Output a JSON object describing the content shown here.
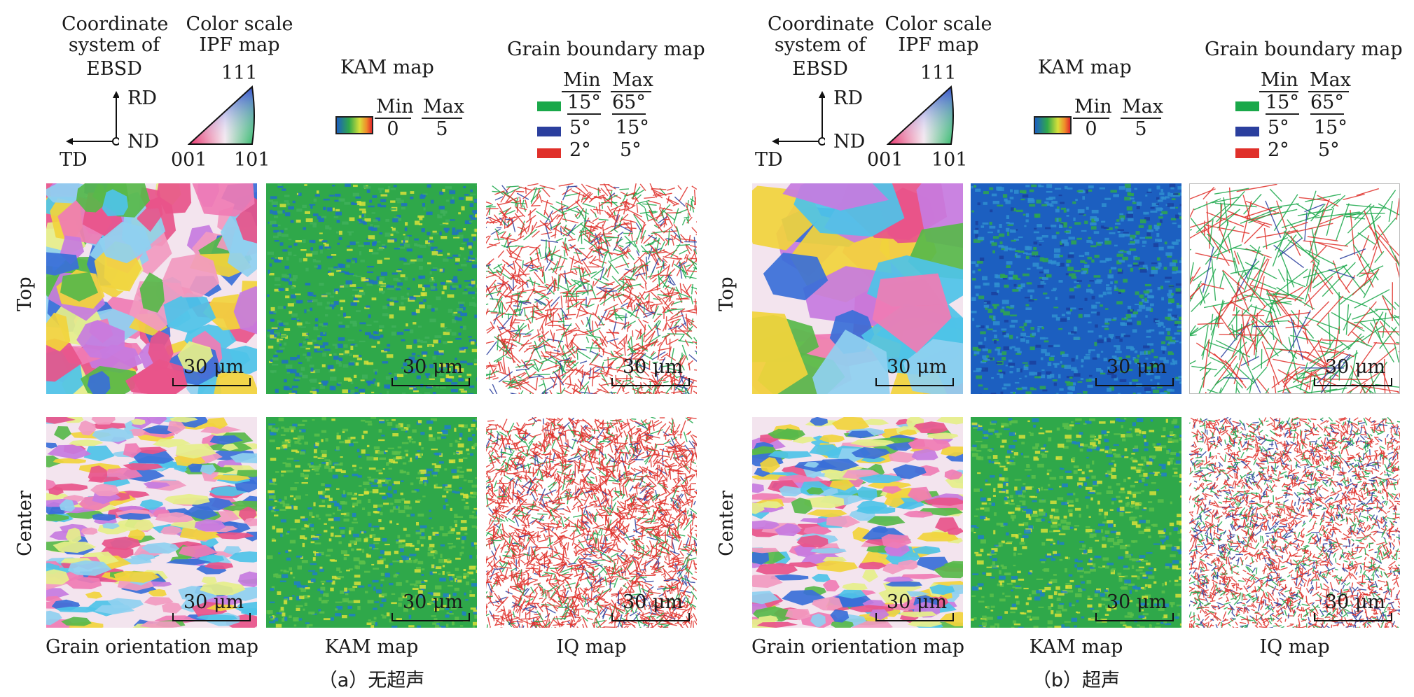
{
  "panels": [
    {
      "caption": "（a）无超声",
      "coord_title": [
        "Coordinate",
        "system of",
        "EBSD"
      ],
      "axis_rd": "RD",
      "axis_nd": "ND",
      "axis_td": "TD",
      "ipf_title": [
        "Color scale",
        "IPF map"
      ],
      "ipf_111": "111",
      "ipf_001": "001",
      "ipf_101": "101",
      "kam_title": "KAM map",
      "kam_min_label": "Min",
      "kam_min_value": "0",
      "kam_max_label": "Max",
      "kam_max_value": "5",
      "gb_title": "Grain boundary map",
      "gb_min_label": "Min",
      "gb_max_label": "Max",
      "gb_rows": [
        {
          "color": "#1aa84a",
          "min": "15°",
          "max": "65°"
        },
        {
          "color": "#2b3f9e",
          "min": "5°",
          "max": "15°"
        },
        {
          "color": "#e0302a",
          "min": "2°",
          "max": "5°"
        }
      ],
      "row_labels": [
        "Top",
        "Center"
      ],
      "scale_bar": "30 μm",
      "column_labels": [
        "Grain orientation map",
        "KAM map",
        "IQ map"
      ]
    },
    {
      "caption": "（b）超声",
      "coord_title": [
        "Coordinate",
        "system of",
        "EBSD"
      ],
      "axis_rd": "RD",
      "axis_nd": "ND",
      "axis_td": "TD",
      "ipf_title": [
        "Color scale",
        "IPF map"
      ],
      "ipf_111": "111",
      "ipf_001": "001",
      "ipf_101": "101",
      "kam_title": "KAM map",
      "kam_min_label": "Min",
      "kam_min_value": "0",
      "kam_max_label": "Max",
      "kam_max_value": "5",
      "gb_title": "Grain boundary map",
      "gb_min_label": "Min",
      "gb_max_label": "Max",
      "gb_rows": [
        {
          "color": "#1aa84a",
          "min": "15°",
          "max": "65°"
        },
        {
          "color": "#2b3f9e",
          "min": "5°",
          "max": "15°"
        },
        {
          "color": "#e0302a",
          "min": "2°",
          "max": "5°"
        }
      ],
      "row_labels": [
        "Top",
        "Center"
      ],
      "scale_bar": "30 μm",
      "column_labels": [
        "Grain orientation map",
        "KAM map",
        "IQ map"
      ]
    }
  ],
  "colors": {
    "ipf": [
      "#e8548a",
      "#f07cb4",
      "#3a6fd8",
      "#4ec3e8",
      "#f2d43c",
      "#58b84a",
      "#c77be0",
      "#f29ac0",
      "#8fd0f0",
      "#e6ef8a"
    ],
    "kam_green": "#2fa84a",
    "kam_blue": "#1c5fc0",
    "kam_yellow": "#d8e03a",
    "gb_green": "#1aa84a",
    "gb_blue": "#2b3f9e",
    "gb_red": "#e0302a"
  }
}
